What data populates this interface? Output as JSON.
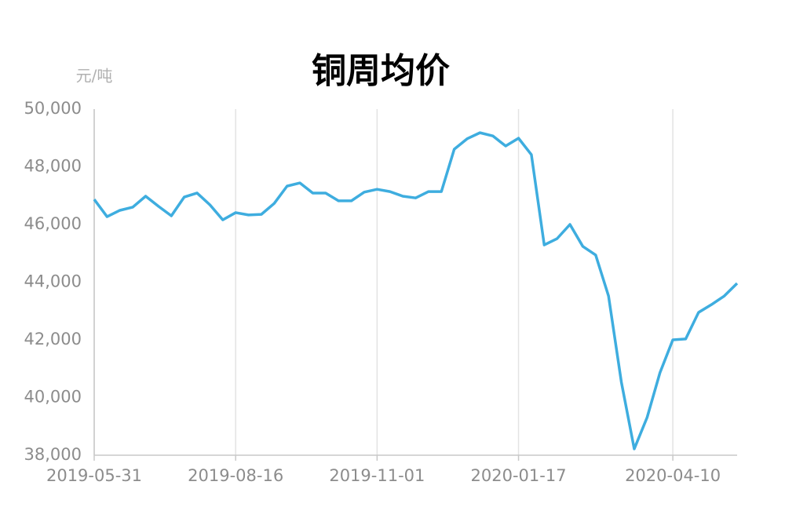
{
  "chart_data": {
    "type": "line",
    "title": "铜周均价",
    "y_unit": "元/吨",
    "x": [
      "2019-05-31",
      "2019-06-07",
      "2019-06-14",
      "2019-06-21",
      "2019-06-28",
      "2019-07-05",
      "2019-07-12",
      "2019-07-19",
      "2019-07-26",
      "2019-08-02",
      "2019-08-09",
      "2019-08-16",
      "2019-08-23",
      "2019-08-30",
      "2019-09-06",
      "2019-09-13",
      "2019-09-20",
      "2019-09-27",
      "2019-10-04",
      "2019-10-11",
      "2019-10-18",
      "2019-10-25",
      "2019-11-01",
      "2019-11-08",
      "2019-11-15",
      "2019-11-22",
      "2019-11-29",
      "2019-12-06",
      "2019-12-13",
      "2019-12-20",
      "2019-12-27",
      "2020-01-03",
      "2020-01-10",
      "2020-01-17",
      "2020-01-24",
      "2020-01-31",
      "2020-02-07",
      "2020-02-14",
      "2020-02-21",
      "2020-02-28",
      "2020-03-06",
      "2020-03-13",
      "2020-03-20",
      "2020-03-27",
      "2020-04-03",
      "2020-04-10",
      "2020-04-17",
      "2020-04-24",
      "2020-05-01",
      "2020-05-08",
      "2020-05-15"
    ],
    "series": [
      {
        "color": "#3eaddf",
        "values": [
          46870,
          46270,
          46490,
          46600,
          46980,
          46630,
          46300,
          46950,
          47090,
          46680,
          46160,
          46410,
          46330,
          46350,
          46730,
          47330,
          47440,
          47090,
          47090,
          46820,
          46820,
          47120,
          47220,
          47140,
          46980,
          46920,
          47140,
          47140,
          48610,
          48970,
          49180,
          49070,
          48720,
          48990,
          48420,
          45290,
          45510,
          46000,
          45240,
          44940,
          43520,
          40530,
          38220,
          39310,
          40860,
          42000,
          42030,
          42950,
          43220,
          43520,
          43960
        ]
      }
    ],
    "xlim": [
      "2019-05-31",
      "2020-05-15"
    ],
    "xticks": [
      "2019-05-31",
      "2019-08-16",
      "2019-11-01",
      "2020-01-17",
      "2020-04-10"
    ],
    "ylim": [
      38000,
      50000
    ],
    "yticks": [
      {
        "value": 38000,
        "label": "38,000"
      },
      {
        "value": 40000,
        "label": "40,000"
      },
      {
        "value": 42000,
        "label": "42,000"
      },
      {
        "value": 44000,
        "label": "44,000"
      },
      {
        "value": 46000,
        "label": "46,000"
      },
      {
        "value": 48000,
        "label": "48,000"
      },
      {
        "value": 50000,
        "label": "50,000"
      }
    ],
    "grid": "x"
  }
}
